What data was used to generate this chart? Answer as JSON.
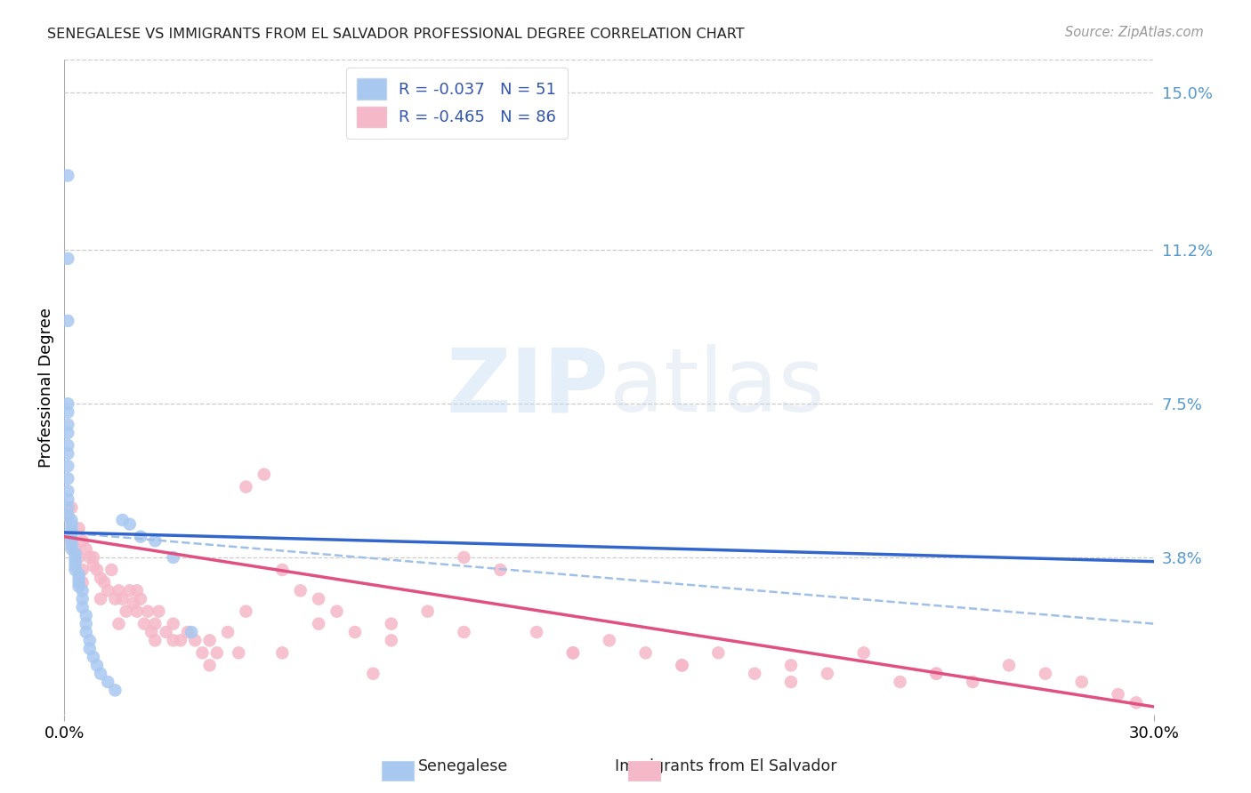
{
  "title": "SENEGALESE VS IMMIGRANTS FROM EL SALVADOR PROFESSIONAL DEGREE CORRELATION CHART",
  "source": "Source: ZipAtlas.com",
  "ylabel": "Professional Degree",
  "right_ytick_labels": [
    "15.0%",
    "11.2%",
    "7.5%",
    "3.8%"
  ],
  "right_ytick_vals": [
    0.15,
    0.112,
    0.075,
    0.038
  ],
  "legend_label1": "Senegalese",
  "legend_label2": "Immigrants from El Salvador",
  "R1": -0.037,
  "N1": 51,
  "R2": -0.465,
  "N2": 86,
  "color_blue_scatter": "#a8c8f0",
  "color_pink_scatter": "#f5b8c8",
  "color_blue_line": "#3366cc",
  "color_pink_line": "#e05080",
  "color_dashed": "#a0c0e8",
  "xlim": [
    0.0,
    0.3
  ],
  "ylim": [
    0.0,
    0.158
  ],
  "watermark_zip": "ZIP",
  "watermark_atlas": "atlas",
  "xtick_labels": [
    "0.0%",
    "30.0%"
  ],
  "xtick_vals": [
    0.0,
    0.3
  ],
  "sen_x": [
    0.001,
    0.001,
    0.001,
    0.001,
    0.001,
    0.001,
    0.001,
    0.001,
    0.001,
    0.001,
    0.001,
    0.001,
    0.001,
    0.001,
    0.001,
    0.002,
    0.002,
    0.002,
    0.002,
    0.002,
    0.002,
    0.002,
    0.002,
    0.003,
    0.003,
    0.003,
    0.003,
    0.003,
    0.004,
    0.004,
    0.004,
    0.004,
    0.005,
    0.005,
    0.005,
    0.006,
    0.006,
    0.006,
    0.007,
    0.007,
    0.008,
    0.009,
    0.01,
    0.012,
    0.014,
    0.016,
    0.018,
    0.021,
    0.025,
    0.03,
    0.035
  ],
  "sen_y": [
    0.13,
    0.11,
    0.095,
    0.075,
    0.073,
    0.07,
    0.068,
    0.065,
    0.063,
    0.06,
    0.057,
    0.054,
    0.052,
    0.05,
    0.048,
    0.047,
    0.046,
    0.045,
    0.044,
    0.043,
    0.042,
    0.041,
    0.04,
    0.039,
    0.038,
    0.037,
    0.036,
    0.035,
    0.034,
    0.033,
    0.032,
    0.031,
    0.03,
    0.028,
    0.026,
    0.024,
    0.022,
    0.02,
    0.018,
    0.016,
    0.014,
    0.012,
    0.01,
    0.008,
    0.006,
    0.047,
    0.046,
    0.043,
    0.042,
    0.038,
    0.02
  ],
  "sal_x": [
    0.001,
    0.002,
    0.002,
    0.003,
    0.004,
    0.004,
    0.005,
    0.005,
    0.006,
    0.007,
    0.008,
    0.009,
    0.01,
    0.011,
    0.012,
    0.013,
    0.014,
    0.015,
    0.016,
    0.017,
    0.018,
    0.019,
    0.02,
    0.021,
    0.022,
    0.023,
    0.024,
    0.025,
    0.026,
    0.028,
    0.03,
    0.032,
    0.034,
    0.036,
    0.038,
    0.04,
    0.042,
    0.045,
    0.048,
    0.05,
    0.055,
    0.06,
    0.065,
    0.07,
    0.075,
    0.08,
    0.09,
    0.1,
    0.11,
    0.12,
    0.13,
    0.14,
    0.15,
    0.16,
    0.17,
    0.18,
    0.19,
    0.2,
    0.21,
    0.22,
    0.23,
    0.24,
    0.25,
    0.26,
    0.27,
    0.28,
    0.29,
    0.295,
    0.005,
    0.01,
    0.02,
    0.03,
    0.05,
    0.07,
    0.09,
    0.11,
    0.14,
    0.17,
    0.2,
    0.24,
    0.008,
    0.015,
    0.025,
    0.04,
    0.06,
    0.085
  ],
  "sal_y": [
    0.048,
    0.05,
    0.042,
    0.04,
    0.045,
    0.038,
    0.042,
    0.035,
    0.04,
    0.038,
    0.036,
    0.035,
    0.033,
    0.032,
    0.03,
    0.035,
    0.028,
    0.03,
    0.028,
    0.025,
    0.03,
    0.027,
    0.025,
    0.028,
    0.022,
    0.025,
    0.02,
    0.022,
    0.025,
    0.02,
    0.022,
    0.018,
    0.02,
    0.018,
    0.015,
    0.018,
    0.015,
    0.02,
    0.015,
    0.055,
    0.058,
    0.035,
    0.03,
    0.028,
    0.025,
    0.02,
    0.022,
    0.025,
    0.038,
    0.035,
    0.02,
    0.015,
    0.018,
    0.015,
    0.012,
    0.015,
    0.01,
    0.012,
    0.01,
    0.015,
    0.008,
    0.01,
    0.008,
    0.012,
    0.01,
    0.008,
    0.005,
    0.003,
    0.032,
    0.028,
    0.03,
    0.018,
    0.025,
    0.022,
    0.018,
    0.02,
    0.015,
    0.012,
    0.008,
    0.01,
    0.038,
    0.022,
    0.018,
    0.012,
    0.015,
    0.01
  ],
  "sen_trend_x0": 0.0,
  "sen_trend_y0": 0.044,
  "sen_trend_x1": 0.3,
  "sen_trend_y1": 0.037,
  "sal_trend_x0": 0.0,
  "sal_trend_y0": 0.043,
  "sal_trend_x1": 0.3,
  "sal_trend_y1": 0.002,
  "dash_trend_x0": 0.0,
  "dash_trend_y0": 0.044,
  "dash_trend_x1": 0.3,
  "dash_trend_y1": 0.022
}
